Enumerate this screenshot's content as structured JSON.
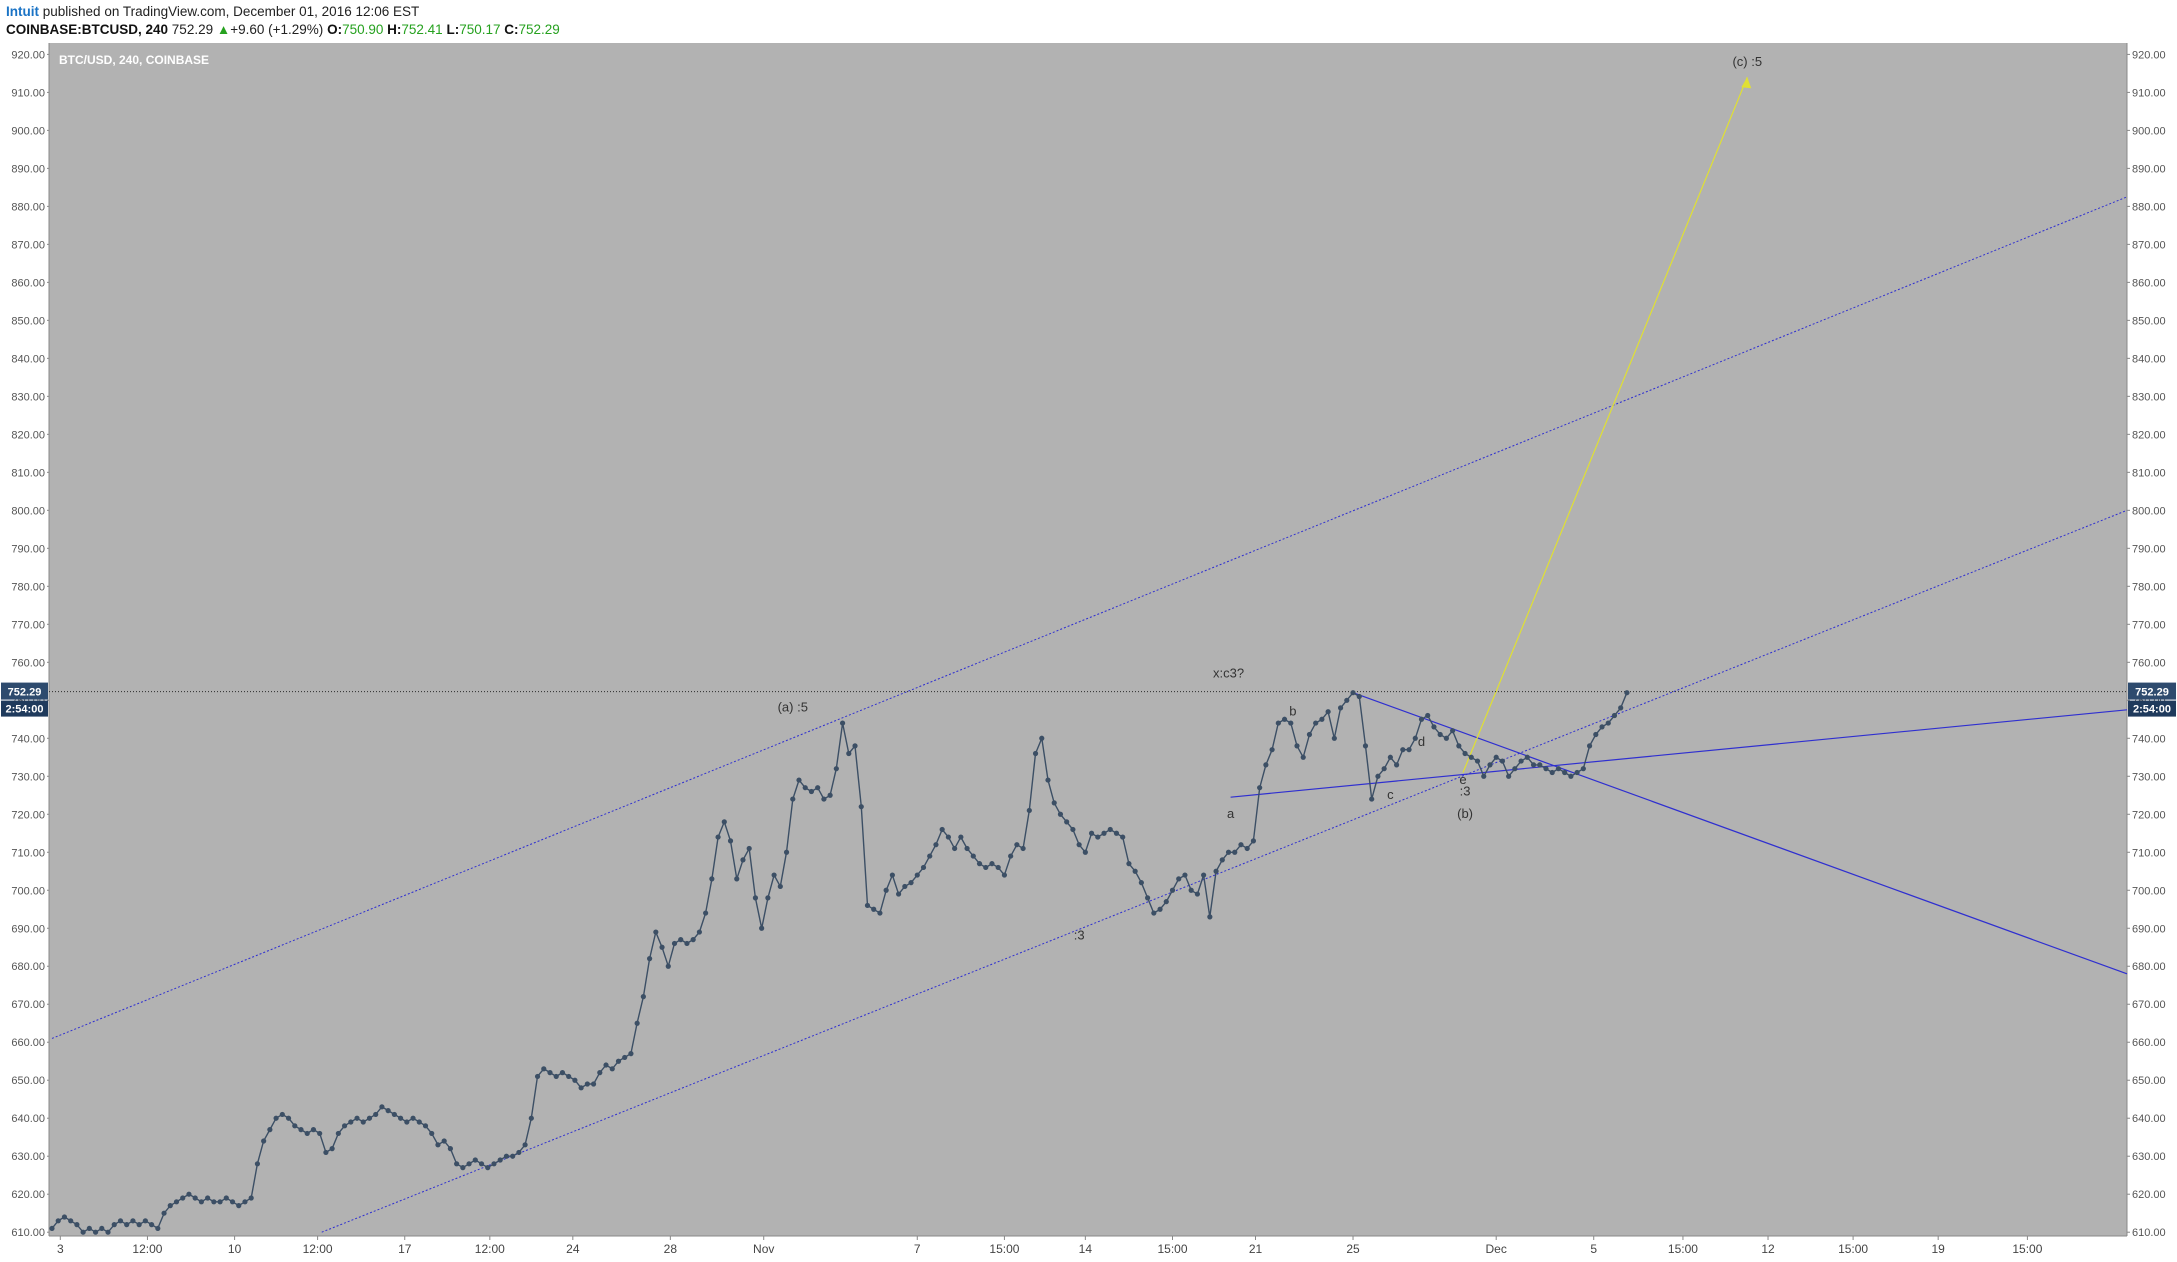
{
  "header": {
    "author": "Intuit",
    "published_text": "published on TradingView.com, December 01, 2016 12:06 EST",
    "symbol": "COINBASE:BTCUSD, 240",
    "last": "752.29",
    "change": "+9.60 (+1.29%)",
    "o_label": "O:",
    "o_value": "750.90",
    "h_label": "H:",
    "h_value": "752.41",
    "l_label": "L:",
    "l_value": "750.17",
    "c_label": "C:",
    "c_value": "752.29"
  },
  "chart_data": {
    "type": "line",
    "title": "BTC/USD, 240, COINBASE",
    "ylim": [
      609,
      923
    ],
    "yticks": [
      "920.00",
      "910.00",
      "900.00",
      "890.00",
      "880.00",
      "870.00",
      "860.00",
      "850.00",
      "840.00",
      "830.00",
      "820.00",
      "810.00",
      "800.00",
      "790.00",
      "780.00",
      "770.00",
      "760.00",
      "750.00",
      "740.00",
      "730.00",
      "720.00",
      "710.00",
      "700.00",
      "690.00",
      "680.00",
      "670.00",
      "660.00",
      "650.00",
      "640.00",
      "630.00",
      "620.00",
      "610.00"
    ],
    "xlim": [
      0,
      100
    ],
    "xticks": [
      {
        "x": 0.4,
        "label": "3"
      },
      {
        "x": 4.6,
        "label": "12:00"
      },
      {
        "x": 8.8,
        "label": "10"
      },
      {
        "x": 12.8,
        "label": "12:00"
      },
      {
        "x": 17.0,
        "label": "17"
      },
      {
        "x": 21.1,
        "label": "12:00"
      },
      {
        "x": 25.1,
        "label": "24"
      },
      {
        "x": 29.8,
        "label": "28"
      },
      {
        "x": 34.3,
        "label": "Nov"
      },
      {
        "x": 41.7,
        "label": "7"
      },
      {
        "x": 45.9,
        "label": "15:00"
      },
      {
        "x": 49.8,
        "label": "14"
      },
      {
        "x": 54.0,
        "label": "15:00"
      },
      {
        "x": 58.0,
        "label": "21"
      },
      {
        "x": 62.7,
        "label": "25"
      },
      {
        "x": 69.6,
        "label": "Dec"
      },
      {
        "x": 74.3,
        "label": "5"
      },
      {
        "x": 78.6,
        "label": "15:00"
      },
      {
        "x": 82.7,
        "label": "12"
      },
      {
        "x": 86.8,
        "label": "15:00"
      },
      {
        "x": 90.9,
        "label": "19"
      },
      {
        "x": 95.2,
        "label": "15:00"
      }
    ],
    "series": [
      {
        "points": [
          [
            0,
            611
          ],
          [
            0.3,
            613
          ],
          [
            0.6,
            614
          ],
          [
            0.9,
            613
          ],
          [
            1.2,
            612
          ],
          [
            1.5,
            610
          ],
          [
            1.8,
            611
          ],
          [
            2.1,
            610
          ],
          [
            2.4,
            611
          ],
          [
            2.7,
            610
          ],
          [
            3.0,
            612
          ],
          [
            3.3,
            613
          ],
          [
            3.6,
            612
          ],
          [
            3.9,
            613
          ],
          [
            4.2,
            612
          ],
          [
            4.5,
            613
          ],
          [
            4.8,
            612
          ],
          [
            5.1,
            611
          ],
          [
            5.4,
            615
          ],
          [
            5.7,
            617
          ],
          [
            6.0,
            618
          ],
          [
            6.3,
            619
          ],
          [
            6.6,
            620
          ],
          [
            6.9,
            619
          ],
          [
            7.2,
            618
          ],
          [
            7.5,
            619
          ],
          [
            7.8,
            618
          ],
          [
            8.1,
            618
          ],
          [
            8.4,
            619
          ],
          [
            8.7,
            618
          ],
          [
            9.0,
            617
          ],
          [
            9.3,
            618
          ],
          [
            9.6,
            619
          ],
          [
            9.9,
            628
          ],
          [
            10.2,
            634
          ],
          [
            10.5,
            637
          ],
          [
            10.8,
            640
          ],
          [
            11.1,
            641
          ],
          [
            11.4,
            640
          ],
          [
            11.7,
            638
          ],
          [
            12.0,
            637
          ],
          [
            12.3,
            636
          ],
          [
            12.6,
            637
          ],
          [
            12.9,
            636
          ],
          [
            13.2,
            631
          ],
          [
            13.5,
            632
          ],
          [
            13.8,
            636
          ],
          [
            14.1,
            638
          ],
          [
            14.4,
            639
          ],
          [
            14.7,
            640
          ],
          [
            15.0,
            639
          ],
          [
            15.3,
            640
          ],
          [
            15.6,
            641
          ],
          [
            15.9,
            643
          ],
          [
            16.2,
            642
          ],
          [
            16.5,
            641
          ],
          [
            16.8,
            640
          ],
          [
            17.1,
            639
          ],
          [
            17.4,
            640
          ],
          [
            17.7,
            639
          ],
          [
            18.0,
            638
          ],
          [
            18.3,
            636
          ],
          [
            18.6,
            633
          ],
          [
            18.9,
            634
          ],
          [
            19.2,
            632
          ],
          [
            19.5,
            628
          ],
          [
            19.8,
            627
          ],
          [
            20.1,
            628
          ],
          [
            20.4,
            629
          ],
          [
            20.7,
            628
          ],
          [
            21.0,
            627
          ],
          [
            21.3,
            628
          ],
          [
            21.6,
            629
          ],
          [
            21.9,
            630
          ],
          [
            22.2,
            630
          ],
          [
            22.5,
            631
          ],
          [
            22.8,
            633
          ],
          [
            23.1,
            640
          ],
          [
            23.4,
            651
          ],
          [
            23.7,
            653
          ],
          [
            24.0,
            652
          ],
          [
            24.3,
            651
          ],
          [
            24.6,
            652
          ],
          [
            24.9,
            651
          ],
          [
            25.2,
            650
          ],
          [
            25.5,
            648
          ],
          [
            25.8,
            649
          ],
          [
            26.1,
            649
          ],
          [
            26.4,
            652
          ],
          [
            26.7,
            654
          ],
          [
            27.0,
            653
          ],
          [
            27.3,
            655
          ],
          [
            27.6,
            656
          ],
          [
            27.9,
            657
          ],
          [
            28.2,
            665
          ],
          [
            28.5,
            672
          ],
          [
            28.8,
            682
          ],
          [
            29.1,
            689
          ],
          [
            29.4,
            685
          ],
          [
            29.7,
            680
          ],
          [
            30.0,
            686
          ],
          [
            30.3,
            687
          ],
          [
            30.6,
            686
          ],
          [
            30.9,
            687
          ],
          [
            31.2,
            689
          ],
          [
            31.5,
            694
          ],
          [
            31.8,
            703
          ],
          [
            32.1,
            714
          ],
          [
            32.4,
            718
          ],
          [
            32.7,
            713
          ],
          [
            33.0,
            703
          ],
          [
            33.3,
            708
          ],
          [
            33.6,
            711
          ],
          [
            33.9,
            698
          ],
          [
            34.2,
            690
          ],
          [
            34.5,
            698
          ],
          [
            34.8,
            704
          ],
          [
            35.1,
            701
          ],
          [
            35.4,
            710
          ],
          [
            35.7,
            724
          ],
          [
            36.0,
            729
          ],
          [
            36.3,
            727
          ],
          [
            36.6,
            726
          ],
          [
            36.9,
            727
          ],
          [
            37.2,
            724
          ],
          [
            37.5,
            725
          ],
          [
            37.8,
            732
          ],
          [
            38.1,
            744
          ],
          [
            38.4,
            736
          ],
          [
            38.7,
            738
          ],
          [
            39.0,
            722
          ],
          [
            39.3,
            696
          ],
          [
            39.6,
            695
          ],
          [
            39.9,
            694
          ],
          [
            40.2,
            700
          ],
          [
            40.5,
            704
          ],
          [
            40.8,
            699
          ],
          [
            41.1,
            701
          ],
          [
            41.4,
            702
          ],
          [
            41.7,
            704
          ],
          [
            42.0,
            706
          ],
          [
            42.3,
            709
          ],
          [
            42.6,
            712
          ],
          [
            42.9,
            716
          ],
          [
            43.2,
            714
          ],
          [
            43.5,
            711
          ],
          [
            43.8,
            714
          ],
          [
            44.1,
            711
          ],
          [
            44.4,
            709
          ],
          [
            44.7,
            707
          ],
          [
            45.0,
            706
          ],
          [
            45.3,
            707
          ],
          [
            45.6,
            706
          ],
          [
            45.9,
            704
          ],
          [
            46.2,
            709
          ],
          [
            46.5,
            712
          ],
          [
            46.8,
            711
          ],
          [
            47.1,
            721
          ],
          [
            47.4,
            736
          ],
          [
            47.7,
            740
          ],
          [
            48.0,
            729
          ],
          [
            48.3,
            723
          ],
          [
            48.6,
            720
          ],
          [
            48.9,
            718
          ],
          [
            49.2,
            716
          ],
          [
            49.5,
            712
          ],
          [
            49.8,
            710
          ],
          [
            50.1,
            715
          ],
          [
            50.4,
            714
          ],
          [
            50.7,
            715
          ],
          [
            51.0,
            716
          ],
          [
            51.3,
            715
          ],
          [
            51.6,
            714
          ],
          [
            51.9,
            707
          ],
          [
            52.2,
            705
          ],
          [
            52.5,
            702
          ],
          [
            52.8,
            698
          ],
          [
            53.1,
            694
          ],
          [
            53.4,
            695
          ],
          [
            53.7,
            697
          ],
          [
            54.0,
            700
          ],
          [
            54.3,
            703
          ],
          [
            54.6,
            704
          ],
          [
            54.9,
            700
          ],
          [
            55.2,
            699
          ],
          [
            55.5,
            704
          ],
          [
            55.8,
            693
          ],
          [
            56.1,
            705
          ],
          [
            56.4,
            708
          ],
          [
            56.7,
            710
          ],
          [
            57.0,
            710
          ],
          [
            57.3,
            712
          ],
          [
            57.6,
            711
          ],
          [
            57.9,
            713
          ],
          [
            58.2,
            727
          ],
          [
            58.5,
            733
          ],
          [
            58.8,
            737
          ],
          [
            59.1,
            744
          ],
          [
            59.4,
            745
          ],
          [
            59.7,
            744
          ],
          [
            60.0,
            738
          ],
          [
            60.3,
            735
          ],
          [
            60.6,
            741
          ],
          [
            60.9,
            744
          ],
          [
            61.2,
            745
          ],
          [
            61.5,
            747
          ],
          [
            61.8,
            740
          ],
          [
            62.1,
            748
          ],
          [
            62.4,
            750
          ],
          [
            62.7,
            752
          ],
          [
            63.0,
            751
          ],
          [
            63.3,
            738
          ],
          [
            63.6,
            724
          ],
          [
            63.9,
            730
          ],
          [
            64.2,
            732
          ],
          [
            64.5,
            735
          ],
          [
            64.8,
            733
          ],
          [
            65.1,
            737
          ],
          [
            65.4,
            737
          ],
          [
            65.7,
            740
          ],
          [
            66.0,
            745
          ],
          [
            66.3,
            746
          ],
          [
            66.6,
            743
          ],
          [
            66.9,
            741
          ],
          [
            67.2,
            740
          ],
          [
            67.5,
            742
          ],
          [
            67.8,
            738
          ],
          [
            68.1,
            736
          ],
          [
            68.4,
            735
          ],
          [
            68.7,
            734
          ],
          [
            69.0,
            730
          ],
          [
            69.3,
            733
          ],
          [
            69.6,
            735
          ],
          [
            69.9,
            734
          ],
          [
            70.2,
            730
          ],
          [
            70.5,
            732
          ],
          [
            70.8,
            734
          ],
          [
            71.1,
            735
          ],
          [
            71.4,
            733
          ],
          [
            71.7,
            733
          ],
          [
            72.0,
            732
          ],
          [
            72.3,
            731
          ],
          [
            72.6,
            732
          ],
          [
            72.9,
            731
          ],
          [
            73.2,
            730
          ],
          [
            73.5,
            731
          ],
          [
            73.8,
            732
          ],
          [
            74.1,
            738
          ],
          [
            74.4,
            741
          ],
          [
            74.7,
            743
          ],
          [
            75.0,
            744
          ],
          [
            75.3,
            746
          ],
          [
            75.6,
            748
          ],
          [
            75.9,
            752
          ]
        ]
      }
    ],
    "annotations": [
      {
        "x": 35.7,
        "y": 747,
        "text": "(a) :5"
      },
      {
        "x": 49.5,
        "y": 687,
        "text": ":3"
      },
      {
        "x": 56.7,
        "y": 756,
        "text": "x:c3?"
      },
      {
        "x": 56.8,
        "y": 719,
        "text": "a"
      },
      {
        "x": 59.8,
        "y": 746,
        "text": "b"
      },
      {
        "x": 64.5,
        "y": 724,
        "text": "c"
      },
      {
        "x": 66.0,
        "y": 738,
        "text": "d"
      },
      {
        "x": 68.0,
        "y": 728,
        "text": "e"
      },
      {
        "x": 68.1,
        "y": 725,
        "text": ":3"
      },
      {
        "x": 68.1,
        "y": 719,
        "text": "(b)"
      },
      {
        "x": 81.7,
        "y": 917,
        "text": "(c)  :5"
      }
    ],
    "last_price_label": "752.29",
    "countdown_label": "2:54:00",
    "colors": {
      "background": "#b2b2b2",
      "price_line": "#3c4f65",
      "trend_lines": "#2f2fd0",
      "projection": "#e0e033",
      "axis_bg": "#ffffff",
      "last_price_bg": "#2e4b6e"
    }
  }
}
